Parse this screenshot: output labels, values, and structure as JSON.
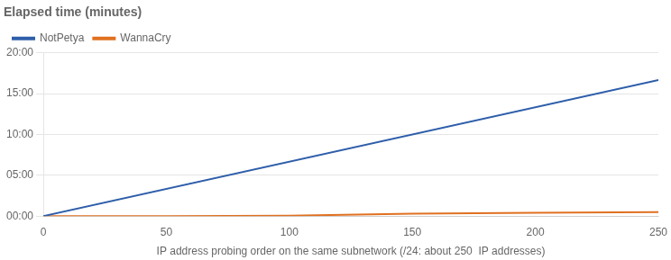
{
  "chart_data": {
    "type": "line",
    "title": "Elapsed time (minutes)",
    "xlabel": "IP address probing order on the same subnetwork (/24: about 250  IP addresses)",
    "series": [
      {
        "name": "NotPetya",
        "color": "#2E5EAA",
        "x": [
          0,
          250
        ],
        "values": [
          0,
          1000
        ]
      },
      {
        "name": "WannaCry",
        "color": "#E07020",
        "x": [
          0,
          50,
          100,
          150,
          200,
          250
        ],
        "values": [
          0,
          0,
          3,
          18,
          25,
          30
        ]
      }
    ],
    "xlim": [
      0,
      250
    ],
    "xticks": [
      0,
      50,
      100,
      150,
      200,
      250
    ],
    "ylim": [
      0,
      1200
    ],
    "yticks": [
      {
        "value": 0,
        "label": "00:00"
      },
      {
        "value": 300,
        "label": "05:00"
      },
      {
        "value": 600,
        "label": "10:00"
      },
      {
        "value": 900,
        "label": "15:00"
      },
      {
        "value": 1200,
        "label": "20:00"
      }
    ],
    "grid": "y",
    "legend": "upper left"
  }
}
